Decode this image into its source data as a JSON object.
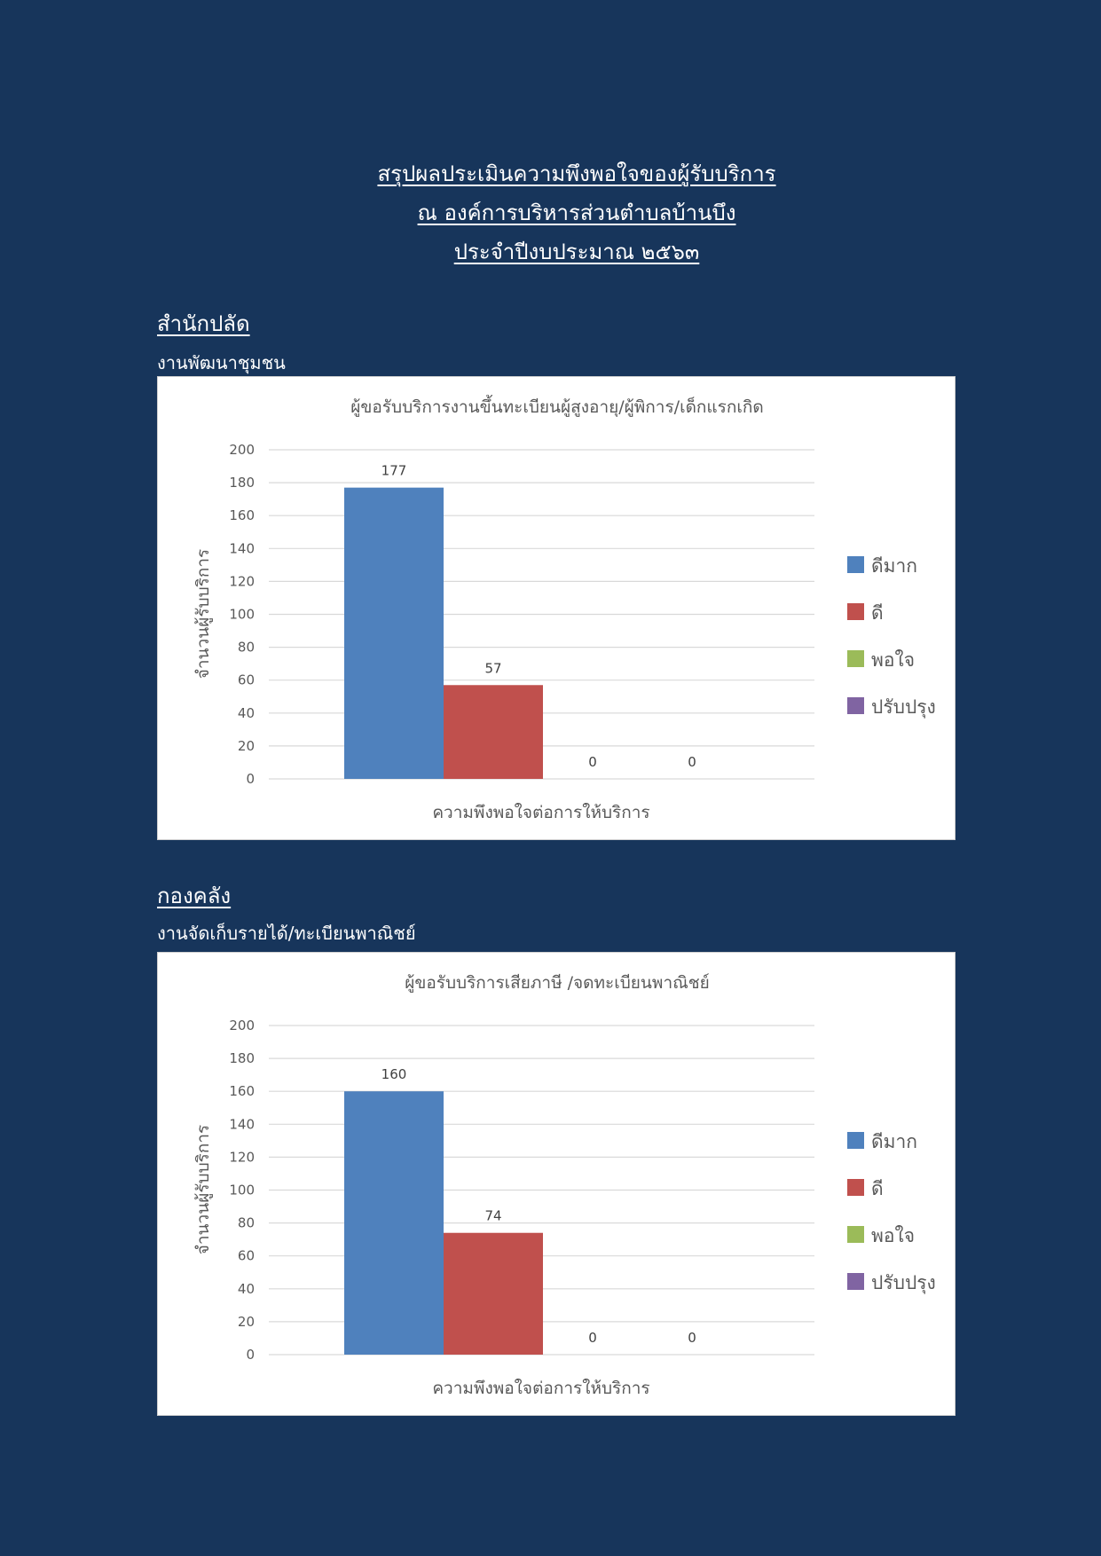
{
  "header": {
    "line1": "สรุปผลประเมินความพึงพอใจของผู้รับบริการ",
    "line2": "ณ องค์การบริหารส่วนตำบลบ้านบึง",
    "line3": "ประจำปีงบประมาณ ๒๕๖๓"
  },
  "sections": [
    {
      "heading": "สำนักปลัด",
      "subheading": "งานพัฒนาชุมชน"
    },
    {
      "heading": "กองคลัง",
      "subheading": "งานจัดเก็บรายได้/ทะเบียนพาณิชย์"
    }
  ],
  "colors": {
    "page_background": "#17355b",
    "series": [
      "#4f81bd",
      "#c0504d",
      "#9bbb59",
      "#8064a2"
    ]
  },
  "chart_data": [
    {
      "type": "bar",
      "title": "ผู้ขอรับบริการงานขึ้นทะเบียนผู้สูงอายุ/ผู้พิการ/เด็กแรกเกิด",
      "xlabel": "ความพึงพอใจต่อการให้บริการ",
      "ylabel": "จำนวนผู้รับบริการ",
      "ylim": [
        0,
        200
      ],
      "yticks": [
        "0",
        "20",
        "40",
        "60",
        "80",
        "100",
        "120",
        "140",
        "160",
        "180",
        "200"
      ],
      "grid": true,
      "legend_position": "right",
      "series": [
        {
          "name": "ดีมาก",
          "values": [
            177
          ]
        },
        {
          "name": "ดี",
          "values": [
            57
          ]
        },
        {
          "name": "พอใจ",
          "values": [
            0
          ]
        },
        {
          "name": "ปรับปรุง",
          "values": [
            0
          ]
        }
      ]
    },
    {
      "type": "bar",
      "title": "ผู้ขอรับบริการเสียภาษี /จดทะเบียนพาณิชย์",
      "xlabel": "ความพึงพอใจต่อการให้บริการ",
      "ylabel": "จำนวนผู้รับบริการ",
      "ylim": [
        0,
        200
      ],
      "yticks": [
        "0",
        "20",
        "40",
        "60",
        "80",
        "100",
        "120",
        "140",
        "160",
        "180",
        "200"
      ],
      "grid": true,
      "legend_position": "right",
      "series": [
        {
          "name": "ดีมาก",
          "values": [
            160
          ]
        },
        {
          "name": "ดี",
          "values": [
            74
          ]
        },
        {
          "name": "พอใจ",
          "values": [
            0
          ]
        },
        {
          "name": "ปรับปรุง",
          "values": [
            0
          ]
        }
      ]
    }
  ]
}
